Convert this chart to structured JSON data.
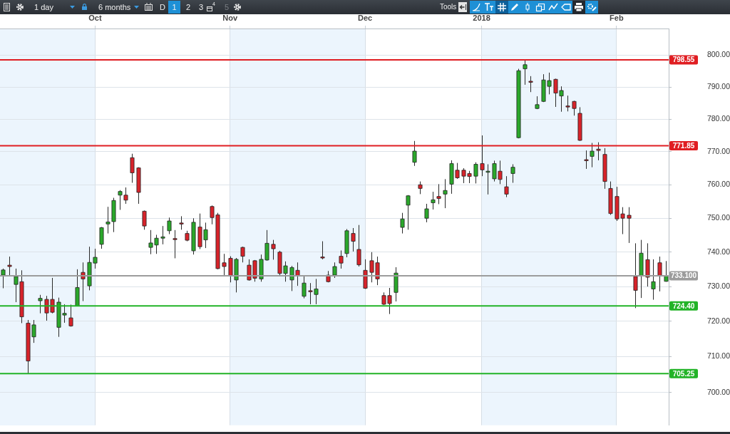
{
  "chart_data": {
    "type": "candlestick",
    "categories": [
      null,
      null,
      null,
      null,
      null,
      null,
      null,
      null,
      null,
      null,
      null,
      null,
      null,
      null,
      null,
      "Oct",
      null,
      null,
      null,
      null,
      null,
      null,
      null,
      null,
      null,
      null,
      null,
      null,
      null,
      null,
      null,
      null,
      null,
      null,
      null,
      null,
      null,
      "Nov",
      null,
      null,
      null,
      null,
      null,
      null,
      null,
      null,
      null,
      null,
      null,
      null,
      null,
      null,
      null,
      null,
      null,
      null,
      null,
      null,
      null,
      "Dec",
      null,
      null,
      null,
      null,
      null,
      null,
      null,
      null,
      null,
      null,
      null,
      null,
      null,
      null,
      null,
      null,
      null,
      null,
      "2018",
      null,
      null,
      null,
      null,
      null,
      null,
      null,
      null,
      null,
      null,
      null,
      null,
      null,
      null,
      null,
      null,
      null,
      null,
      null,
      null,
      null,
      "Feb",
      null,
      null,
      null,
      null,
      null,
      null,
      null,
      null
    ],
    "ohlc": [
      [
        733.3,
        735.2,
        729.5,
        734.8
      ],
      [
        736.2,
        738.7,
        732.9,
        735.8
      ],
      [
        730.6,
        735.2,
        725.5,
        732.9
      ],
      [
        731.4,
        734.7,
        719.5,
        721.3
      ],
      [
        719.5,
        720.4,
        705.25,
        708.8
      ],
      [
        715.6,
        720.4,
        713.9,
        719.0
      ],
      [
        725.9,
        727.6,
        722.3,
        726.6
      ],
      [
        726.3,
        727.3,
        720.2,
        722.4
      ],
      [
        726.3,
        732.5,
        722.3,
        722.6
      ],
      [
        718.3,
        726.8,
        715.6,
        725.5
      ],
      [
        721.8,
        724.9,
        719.6,
        722.3
      ],
      [
        721.0,
        724.8,
        718.5,
        718.7
      ],
      [
        724.4,
        735.0,
        724.4,
        729.7
      ],
      [
        734.1,
        737.0,
        725.8,
        732.2
      ],
      [
        730.2,
        741.6,
        728.9,
        737.0
      ],
      [
        736.8,
        741.0,
        735.2,
        738.5
      ],
      [
        742.3,
        747.4,
        741.0,
        747.2
      ],
      [
        748.3,
        753.4,
        745.5,
        748.9
      ],
      [
        749.0,
        756.1,
        745.9,
        755.3
      ],
      [
        756.9,
        758.4,
        752.5,
        758.0
      ],
      [
        756.9,
        759.2,
        754.3,
        755.4
      ],
      [
        768.2,
        769.4,
        760.6,
        763.6
      ],
      [
        765.1,
        765.3,
        754.3,
        757.7
      ],
      [
        752.1,
        752.3,
        746.6,
        747.7
      ],
      [
        741.4,
        746.5,
        739.4,
        742.7
      ],
      [
        742.1,
        745.1,
        739.5,
        744.1
      ],
      [
        744.1,
        747.7,
        742.3,
        744.5
      ],
      [
        746.3,
        750.2,
        745.3,
        749.2
      ],
      [
        744.0,
        746.5,
        738.2,
        743.8
      ],
      [
        748.6,
        750.6,
        746.6,
        748.4
      ],
      [
        745.5,
        746.3,
        743.2,
        743.5
      ],
      [
        740.4,
        750.0,
        739.3,
        748.8
      ],
      [
        747.4,
        751.4,
        740.9,
        741.6
      ],
      [
        743.6,
        748.7,
        741.2,
        746.6
      ],
      [
        753.5,
        753.8,
        748.2,
        750.2
      ],
      [
        751.0,
        751.6,
        735.0,
        735.2
      ],
      [
        736.9,
        739.5,
        733.3,
        735.8
      ],
      [
        738.2,
        738.8,
        731.2,
        733.2
      ],
      [
        731.9,
        738.3,
        728.3,
        737.9
      ],
      [
        741.4,
        741.6,
        737.0,
        738.8
      ],
      [
        736.2,
        737.9,
        731.7,
        731.9
      ],
      [
        737.5,
        737.7,
        731.4,
        732.4
      ],
      [
        732.2,
        739.3,
        731.4,
        737.9
      ],
      [
        737.7,
        746.5,
        737.5,
        742.6
      ],
      [
        742.3,
        743.6,
        737.8,
        741.0
      ],
      [
        740.0,
        740.4,
        733.2,
        733.8
      ],
      [
        733.8,
        737.3,
        731.4,
        736.0
      ],
      [
        731.9,
        736.0,
        728.7,
        735.5
      ],
      [
        734.7,
        737.0,
        730.2,
        733.2
      ],
      [
        727.2,
        732.9,
        726.6,
        731.0
      ],
      [
        728.8,
        731.0,
        724.9,
        728.6
      ],
      [
        727.7,
        732.2,
        724.9,
        729.3
      ],
      [
        738.6,
        743.2,
        737.9,
        738.4
      ],
      [
        733.3,
        734.5,
        731.2,
        731.4
      ],
      [
        733.3,
        737.0,
        732.5,
        735.8
      ],
      [
        738.8,
        740.5,
        735.2,
        736.8
      ],
      [
        739.6,
        746.8,
        738.5,
        746.3
      ],
      [
        745.5,
        747.1,
        740.2,
        743.2
      ],
      [
        740.8,
        748.0,
        735.8,
        736.3
      ],
      [
        734.7,
        737.9,
        729.3,
        729.5
      ],
      [
        737.5,
        740.0,
        731.2,
        734.1
      ],
      [
        736.9,
        738.7,
        730.4,
        732.2
      ],
      [
        727.4,
        728.3,
        724.7,
        724.9
      ],
      [
        727.4,
        729.6,
        722.1,
        725.1
      ],
      [
        728.3,
        735.6,
        725.7,
        733.9
      ],
      [
        747.3,
        751.6,
        745.5,
        749.8
      ],
      [
        753.9,
        756.9,
        746.6,
        756.7
      ],
      [
        766.8,
        773.3,
        765.7,
        770.2
      ],
      [
        760.0,
        761.0,
        757.2,
        758.9
      ],
      [
        750.0,
        754.3,
        748.8,
        752.8
      ],
      [
        754.6,
        757.9,
        752.6,
        755.5
      ],
      [
        756.5,
        760.2,
        754.2,
        755.9
      ],
      [
        757.2,
        761.7,
        753.0,
        758.3
      ],
      [
        760.2,
        767.4,
        757.3,
        766.4
      ],
      [
        764.4,
        766.6,
        761.8,
        762.1
      ],
      [
        764.4,
        765.0,
        760.5,
        762.6
      ],
      [
        763.4,
        764.2,
        760.5,
        762.5
      ],
      [
        762.6,
        766.8,
        760.4,
        766.2
      ],
      [
        766.4,
        775.0,
        762.6,
        764.5
      ],
      [
        764.0,
        766.2,
        757.1,
        764.1
      ],
      [
        761.8,
        767.3,
        761.0,
        766.4
      ],
      [
        764.1,
        767.3,
        760.2,
        761.6
      ],
      [
        759.4,
        762.6,
        756.3,
        757.2
      ],
      [
        763.4,
        766.2,
        760.6,
        765.3
      ],
      [
        774.3,
        795.7,
        774.1,
        795.1
      ],
      [
        795.7,
        798.55,
        790.7,
        797.0
      ],
      [
        791.8,
        793.4,
        788.4,
        791.6
      ],
      [
        783.3,
        787.1,
        783.1,
        784.5
      ],
      [
        785.5,
        794.0,
        785.3,
        792.2
      ],
      [
        790.2,
        794.5,
        787.7,
        792.0
      ],
      [
        792.4,
        792.6,
        783.8,
        788.1
      ],
      [
        787.2,
        790.2,
        782.3,
        788.9
      ],
      [
        784.1,
        787.3,
        782.4,
        783.9
      ],
      [
        785.5,
        785.7,
        781.1,
        783.3
      ],
      [
        781.8,
        783.7,
        773.3,
        773.5
      ],
      [
        767.6,
        770.4,
        764.8,
        767.4
      ],
      [
        768.6,
        772.7,
        765.3,
        770.2
      ],
      [
        770.8,
        772.9,
        767.4,
        770.4
      ],
      [
        769.2,
        771.1,
        758.8,
        761.0
      ],
      [
        758.9,
        761.0,
        751.0,
        751.4
      ],
      [
        756.5,
        759.4,
        749.2,
        749.8
      ],
      [
        751.3,
        753.3,
        745.3,
        750.0
      ],
      [
        750.9,
        753.3,
        742.7,
        750.0
      ],
      [
        732.9,
        742.6,
        723.8,
        728.9
      ],
      [
        733.1,
        743.6,
        726.7,
        739.7
      ],
      [
        737.8,
        742.6,
        730.0,
        732.7
      ],
      [
        729.3,
        737.9,
        726.2,
        731.4
      ],
      [
        736.9,
        738.7,
        728.6,
        733.1
      ],
      [
        731.5,
        737.4,
        731.4,
        733.1
      ]
    ],
    "colors": [
      "#2ba82b",
      "#d8232a",
      "#2ba82b",
      "#d8232a",
      "#d8232a",
      "#2ba82b",
      "#2ba82b",
      "#d8232a",
      "#d8232a",
      "#2ba82b",
      "#2ba82b",
      "#d8232a",
      "#2ba82b",
      "#d8232a",
      "#2ba82b",
      "#2ba82b",
      "#2ba82b",
      "#2ba82b",
      "#2ba82b",
      "#2ba82b",
      "#d8232a",
      "#d8232a",
      "#d8232a",
      "#d8232a",
      "#2ba82b",
      "#2ba82b",
      "#2ba82b",
      "#2ba82b",
      "#d8232a",
      "#d8232a",
      "#d8232a",
      "#2ba82b",
      "#d8232a",
      "#2ba82b",
      "#d8232a",
      "#d8232a",
      "#d8232a",
      "#d8232a",
      "#2ba82b",
      "#d8232a",
      "#d8232a",
      "#d8232a",
      "#2ba82b",
      "#2ba82b",
      "#d8232a",
      "#d8232a",
      "#2ba82b",
      "#2ba82b",
      "#d8232a",
      "#2ba82b",
      "#d8232a",
      "#2ba82b",
      "#d8232a",
      "#d8232a",
      "#2ba82b",
      "#d8232a",
      "#2ba82b",
      "#d8232a",
      "#d8232a",
      "#d8232a",
      "#d8232a",
      "#d8232a",
      "#d8232a",
      "#d8232a",
      "#2ba82b",
      "#2ba82b",
      "#2ba82b",
      "#2ba82b",
      "#d8232a",
      "#2ba82b",
      "#2ba82b",
      "#d8232a",
      "#2ba82b",
      "#2ba82b",
      "#d8232a",
      "#d8232a",
      "#d8232a",
      "#2ba82b",
      "#d8232a",
      "#2ba82b",
      "#2ba82b",
      "#d8232a",
      "#d8232a",
      "#2ba82b",
      "#2ba82b",
      "#2ba82b",
      "#d8232a",
      "#2ba82b",
      "#2ba82b",
      "#2ba82b",
      "#d8232a",
      "#2ba82b",
      "#d8232a",
      "#d8232a",
      "#d8232a",
      "#d8232a",
      "#2ba82b",
      "#d8232a",
      "#d8232a",
      "#d8232a",
      "#d8232a",
      "#d8232a",
      "#d8232a",
      "#d8232a",
      "#2ba82b",
      "#d8232a",
      "#2ba82b",
      "#d8232a",
      "#2ba82b"
    ],
    "ylim": [
      691,
      808.5
    ],
    "yticks": [
      {
        "value": 700,
        "label": "700.00"
      },
      {
        "value": 710,
        "label": "710.00"
      },
      {
        "value": 720,
        "label": "720.00"
      },
      {
        "value": 730,
        "label": "730.00"
      },
      {
        "value": 740,
        "label": "740.00"
      },
      {
        "value": 750,
        "label": "750.00"
      },
      {
        "value": 760,
        "label": "760.00"
      },
      {
        "value": 770,
        "label": "770.00"
      },
      {
        "value": 780,
        "label": "780.00"
      },
      {
        "value": 790,
        "label": "790.00"
      },
      {
        "value": 800,
        "label": "800.00"
      }
    ],
    "log": true,
    "grid": true,
    "bands": [
      {
        "axis": "x",
        "from": "Nov",
        "to": "Dec",
        "color": "#ecf5fd"
      },
      {
        "axis": "x",
        "from": "2018",
        "to": "Feb",
        "color": "#ecf5fd"
      }
    ],
    "ref_lines": [
      {
        "axis": "y",
        "value": 798.55,
        "label": "798.55",
        "color": "#e01e22"
      },
      {
        "axis": "y",
        "value": 771.85,
        "label": "771.85",
        "color": "#e01e22"
      },
      {
        "axis": "y",
        "value": 733.1,
        "label": "733.100",
        "color": "#9c9c9c"
      },
      {
        "axis": "y",
        "value": 724.4,
        "label": "724.40",
        "color": "#22b327"
      },
      {
        "axis": "y",
        "value": 705.25,
        "label": "705.25",
        "color": "#22b327"
      }
    ],
    "annotations": [
      "1 day",
      "6 months",
      "D",
      "1",
      "2",
      "3",
      "4",
      "5",
      "Tools"
    ]
  }
}
